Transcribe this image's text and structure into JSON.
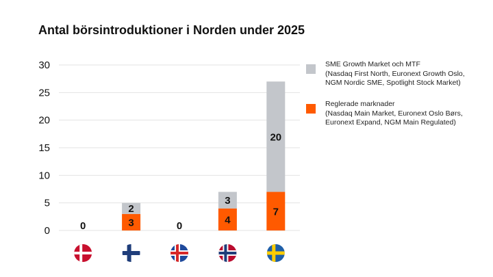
{
  "chart_data": {
    "type": "bar",
    "stacked": true,
    "title": "Antal börsintroduktioner i Norden under 2025",
    "categories": [
      "Danmark",
      "Finland",
      "Island",
      "Norge",
      "Sverige"
    ],
    "category_icons": [
      "flag-denmark-icon",
      "flag-finland-icon",
      "flag-iceland-icon",
      "flag-norway-icon",
      "flag-sweden-icon"
    ],
    "series": [
      {
        "name": "Reglerade marknader",
        "name_lines": [
          "Reglerade marknader",
          "(Nasdaq Main Market, Euronext Oslo Børs,",
          "Euronext Expand, NGM Main Regulated)"
        ],
        "color": "#ff5a00",
        "values": [
          0,
          3,
          0,
          4,
          7
        ]
      },
      {
        "name": "SME Growth Market och MTF",
        "name_lines": [
          "SME Growth Market och MTF",
          "(Nasdaq First North, Euronext Growth Oslo,",
          "NGM Nordic SME, Spotlight Stock Market)"
        ],
        "color": "#c3c6cb",
        "values": [
          0,
          2,
          0,
          3,
          20
        ]
      }
    ],
    "ylim": [
      0,
      30
    ],
    "yticks": [
      0,
      5,
      10,
      15,
      20,
      25,
      30
    ],
    "grid": true,
    "legend_position": "right"
  }
}
